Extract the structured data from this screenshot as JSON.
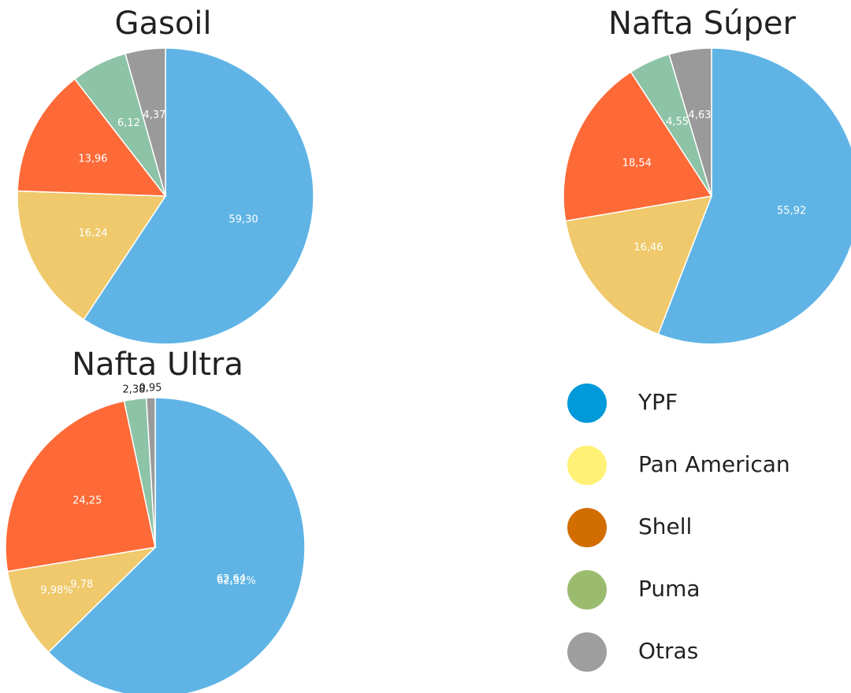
{
  "chart_data": [
    {
      "type": "pie",
      "title": "Gasoil",
      "values": [
        59.3,
        16.24,
        13.96,
        6.12,
        4.37
      ],
      "value_labels": [
        "59,30",
        "16,24",
        "13,96",
        "6,12",
        "4,37"
      ],
      "colors": [
        "#5fb4e5",
        "#efc96b",
        "#fd6a37",
        "#8dc3a6",
        "#9a9a9a"
      ]
    },
    {
      "type": "pie",
      "title": "Nafta Súper",
      "values": [
        55.92,
        16.46,
        18.54,
        4.55,
        4.63
      ],
      "value_labels": [
        "55,92",
        "16,46",
        "18,54",
        "4,55",
        "4,63"
      ],
      "colors": [
        "#5fb4e5",
        "#efc96b",
        "#fd6a37",
        "#8dc3a6",
        "#9a9a9a"
      ]
    },
    {
      "type": "pie",
      "title": "Nafta Ultra",
      "values": [
        62.64,
        9.78,
        24.25,
        2.38,
        0.95
      ],
      "value_labels": [
        "62,64",
        "9,78",
        "24,25",
        "2,38",
        "0,95"
      ],
      "colors": [
        "#5fb4e5",
        "#efc96b",
        "#fd6a37",
        "#8dc3a6",
        "#9a9a9a"
      ],
      "annotations": [
        "62,32%",
        "9,98%"
      ]
    }
  ],
  "legend": {
    "labels": [
      "YPF",
      "Pan American",
      "Shell",
      "Puma",
      "Otras"
    ],
    "colors": [
      "#0099da",
      "#fff176",
      "#d26d00",
      "#9bbb6e",
      "#9e9e9e"
    ]
  }
}
